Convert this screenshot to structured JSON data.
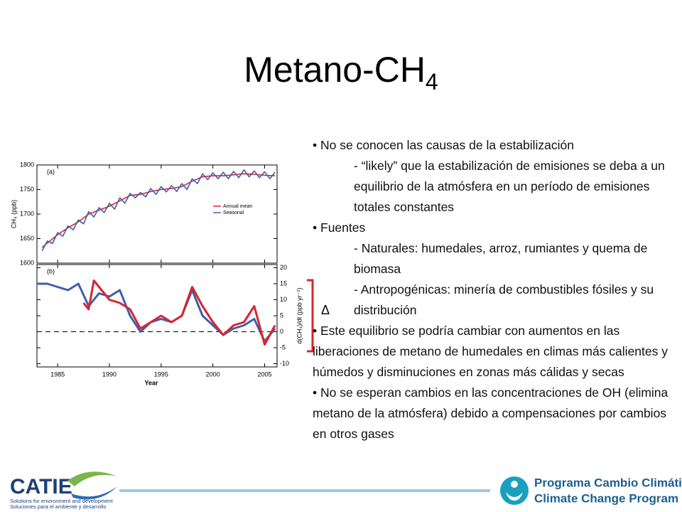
{
  "title": {
    "text": "Metano-CH",
    "subscript": "4"
  },
  "chart_data": [
    {
      "type": "line",
      "panel_label": "(a)",
      "ylabel": "CH₄ (ppb)",
      "xlim": [
        1983,
        2006.2
      ],
      "xticks": [
        1985,
        1990,
        1995,
        2000,
        2005
      ],
      "ylim": [
        1600,
        1800
      ],
      "yticks": [
        1600,
        1650,
        1700,
        1750,
        1800
      ],
      "series": [
        {
          "name": "Annual mean",
          "color": "#d8262e",
          "x": [
            1983.5,
            1985,
            1986,
            1987,
            1988,
            1989,
            1990,
            1991,
            1992,
            1993,
            1994,
            1995,
            1996,
            1997,
            1998,
            1999,
            2000,
            2001,
            2002,
            2003,
            2004,
            2005,
            2006
          ],
          "values": [
            1632,
            1658,
            1672,
            1684,
            1700,
            1708,
            1716,
            1727,
            1738,
            1740,
            1746,
            1750,
            1752,
            1756,
            1767,
            1776,
            1778,
            1778,
            1780,
            1782,
            1781,
            1779,
            1778
          ]
        },
        {
          "name": "Seasonal",
          "color": "#3d5fb0",
          "x": [
            1983.5,
            1984,
            1984.5,
            1985,
            1985.5,
            1986,
            1986.5,
            1987,
            1987.5,
            1988,
            1988.5,
            1989,
            1989.5,
            1990,
            1990.5,
            1991,
            1991.5,
            1992,
            1992.5,
            1993,
            1993.5,
            1994,
            1994.5,
            1995,
            1995.5,
            1996,
            1996.5,
            1997,
            1997.5,
            1998,
            1998.5,
            1999,
            1999.5,
            2000,
            2000.5,
            2001,
            2001.5,
            2002,
            2002.5,
            2003,
            2003.5,
            2004,
            2004.5,
            2005,
            2005.5,
            2006
          ],
          "values": [
            1625,
            1645,
            1640,
            1662,
            1655,
            1676,
            1668,
            1688,
            1680,
            1705,
            1694,
            1713,
            1703,
            1722,
            1710,
            1733,
            1722,
            1742,
            1733,
            1744,
            1735,
            1752,
            1740,
            1756,
            1745,
            1758,
            1746,
            1762,
            1750,
            1772,
            1762,
            1782,
            1770,
            1784,
            1772,
            1785,
            1772,
            1787,
            1774,
            1790,
            1776,
            1788,
            1774,
            1786,
            1772,
            1785
          ]
        }
      ]
    },
    {
      "type": "line",
      "panel_label": "(b)",
      "ylabel": "d(CH₄)/dt (ppb yr⁻¹)",
      "xlabel": "Year",
      "xlim": [
        1983,
        2006.2
      ],
      "xticks": [
        1985,
        1990,
        1995,
        2000,
        2005
      ],
      "ylim": [
        -11,
        21
      ],
      "yticks": [
        -10,
        -5,
        0,
        5,
        10,
        15,
        20
      ],
      "reference_line": 0,
      "series": [
        {
          "color": "#3d5fb0",
          "x": [
            1983,
            1984,
            1985,
            1986,
            1987,
            1988,
            1989,
            1990,
            1991,
            1992,
            1993,
            1994,
            1995,
            1996,
            1997,
            1998,
            1999,
            2000,
            2001,
            2002,
            2003,
            2004,
            2005,
            2006
          ],
          "values": [
            15,
            15,
            14,
            13,
            15,
            8,
            12,
            11,
            13,
            5,
            0,
            3,
            4,
            3,
            5,
            13,
            5,
            2,
            -1,
            1,
            2,
            4,
            -3,
            1
          ]
        },
        {
          "color": "#d8262e",
          "x": [
            1987.5,
            1988,
            1988.5,
            1989,
            1990,
            1991,
            1992,
            1993,
            1994,
            1995,
            1996,
            1997,
            1998,
            1999,
            2000,
            2001,
            2002,
            2003,
            2004,
            2005,
            2006
          ],
          "values": [
            9,
            7,
            16,
            14,
            10,
            9,
            7,
            1,
            3,
            5,
            3,
            5,
            14,
            8,
            3,
            -1,
            2,
            3,
            8,
            -4,
            2
          ]
        }
      ]
    }
  ],
  "delta": "Δ",
  "bullets": [
    {
      "text": "No se conocen las causas de la estabilización",
      "sub": [
        "- “likely” que la estabilización de emisiones se deba a un equilibrio de la atmósfera en un período de emisiones totales constantes"
      ]
    },
    {
      "text": "Fuentes",
      "sub": [
        "- Naturales: humedales, arroz, rumiantes y quema de biomasa",
        "- Antropogénicas: minería de combustibles fósiles y su distribución"
      ]
    },
    {
      "text": "Este equilibrio se podría cambiar con aumentos en las liberaciones de metano de humedales en climas más calientes y húmedos y disminuciones en zonas más cálidas y secas"
    },
    {
      "text": "No se esperan cambios en las concentraciones de OH (elimina metano de la atmósfera) debido a compensaciones por cambios en otros gases"
    }
  ],
  "footer": {
    "left_logo": {
      "name": "CATIE",
      "tagline_en": "Solutions for environment and development",
      "tagline_es": "Soluciones para el ambiente y desarrollo"
    },
    "right_logo": {
      "line1": "Programa Cambio Climático",
      "line2": "Climate Change Program"
    }
  }
}
